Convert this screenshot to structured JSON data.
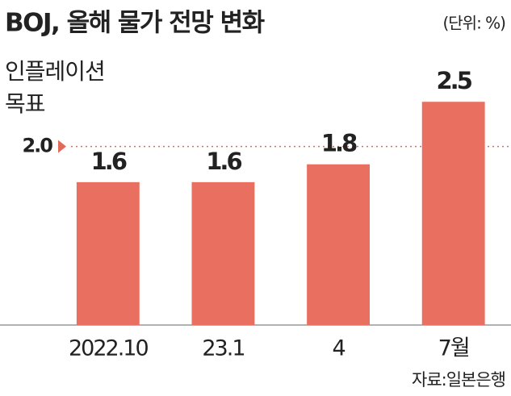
{
  "chart_data": {
    "type": "bar",
    "title": "BOJ, 올해 물가 전망 변화",
    "unit": "(단위: %)",
    "categories": [
      "2022.10",
      "23.1",
      "4",
      "7월"
    ],
    "values": [
      1.6,
      1.6,
      1.8,
      2.5
    ],
    "color": "#e96f61",
    "ylim": [
      0,
      3.5
    ],
    "target": {
      "name": [
        "인플레이션",
        "목표"
      ],
      "value": 2.0,
      "label": "2.0",
      "color": "#e36a5a"
    },
    "source": "자료:일본은행"
  }
}
